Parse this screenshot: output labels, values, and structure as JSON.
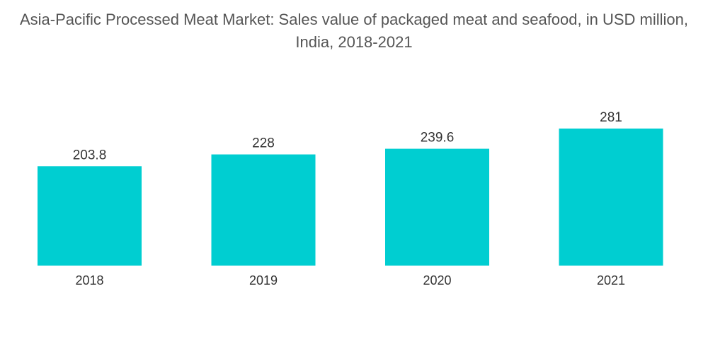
{
  "chart_data": {
    "type": "bar",
    "title": "Asia-Pacific Processed Meat Market: Sales value of packaged meat and seafood, in USD million, India, 2018-2021",
    "xlabel": "",
    "ylabel": "",
    "categories": [
      "2018",
      "2019",
      "2020",
      "2021"
    ],
    "values": [
      203.8,
      228,
      239.6,
      281
    ],
    "value_labels": [
      "203.8",
      "228",
      "239.6",
      "281"
    ],
    "ylim": [
      0,
      281
    ],
    "grid": false,
    "legend": "none",
    "bar_color": "#00CED1"
  }
}
